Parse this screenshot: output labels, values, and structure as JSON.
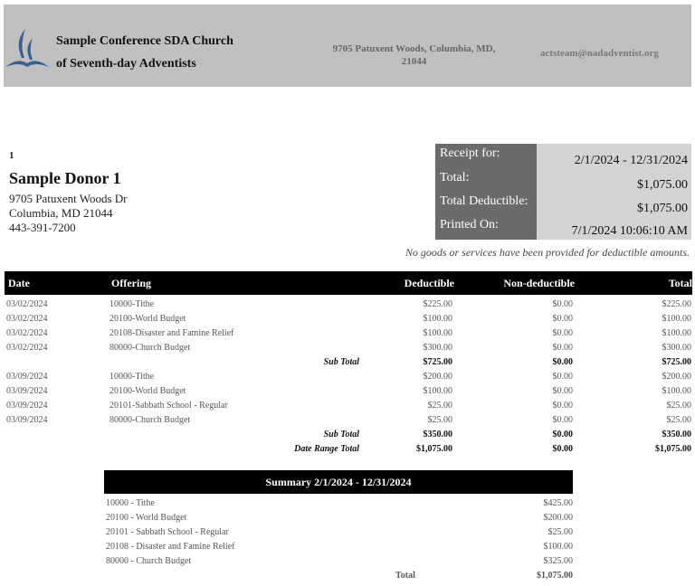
{
  "header": {
    "org_line1": "Sample Conference SDA Church",
    "org_line2": "of Seventh-day Adventists",
    "address": "9705 Patuxent Woods, Columbia, MD, 21044",
    "email": "actsteam@nadadventist.org",
    "logo_color": "#3a5f8f"
  },
  "donor": {
    "number": "1",
    "name": "Sample Donor 1",
    "street": "9705 Patuxent Woods Dr",
    "city": "Columbia, MD 21044",
    "phone": "443-391-7200"
  },
  "receipt": [
    {
      "label": "Receipt for:",
      "value": "2/1/2024 - 12/31/2024"
    },
    {
      "label": "Total:",
      "value": "$1,075.00"
    },
    {
      "label": "Total Deductible:",
      "value": "$1,075.00"
    },
    {
      "label": "Printed On:",
      "value": "7/1/2024  10:06:10 AM"
    }
  ],
  "notice": "No goods or services have been provided for deductible amounts.",
  "table": {
    "headers": [
      "Date",
      "Offering",
      "Deductible",
      "Non-deductible",
      "Total"
    ],
    "rows": [
      {
        "date": "03/02/2024",
        "offering": "10000-Tithe",
        "ded": "$225.00",
        "non": "$0.00",
        "total": "$225.00"
      },
      {
        "date": "03/02/2024",
        "offering": "20100-World Budget",
        "ded": "$100.00",
        "non": "$0.00",
        "total": "$100.00"
      },
      {
        "date": "03/02/2024",
        "offering": "20108-Disaster and Famine Relief",
        "ded": "$100.00",
        "non": "$0.00",
        "total": "$100.00"
      },
      {
        "date": "03/02/2024",
        "offering": "80000-Church Budget",
        "ded": "$300.00",
        "non": "$0.00",
        "total": "$300.00"
      },
      {
        "label": "Sub Total",
        "ded": "$725.00",
        "non": "$0.00",
        "total": "$725.00"
      },
      {
        "date": "03/09/2024",
        "offering": "10000-Tithe",
        "ded": "$200.00",
        "non": "$0.00",
        "total": "$200.00"
      },
      {
        "date": "03/09/2024",
        "offering": "20100-World Budget",
        "ded": "$100.00",
        "non": "$0.00",
        "total": "$100.00"
      },
      {
        "date": "03/09/2024",
        "offering": "20101-Sabbath School - Regular",
        "ded": "$25.00",
        "non": "$0.00",
        "total": "$25.00"
      },
      {
        "date": "03/09/2024",
        "offering": "80000-Church Budget",
        "ded": "$25.00",
        "non": "$0.00",
        "total": "$25.00"
      },
      {
        "label": "Sub Total",
        "ded": "$350.00",
        "non": "$0.00",
        "total": "$350.00"
      },
      {
        "label": "Date Range Total",
        "ded": "$1,075.00",
        "non": "$0.00",
        "total": "$1,075.00"
      }
    ]
  },
  "summary": {
    "title": "Summary 2/1/2024 - 12/31/2024",
    "rows": [
      {
        "fund": "10000 - Tithe",
        "amount": "$425.00"
      },
      {
        "fund": "20100 - World Budget",
        "amount": "$200.00"
      },
      {
        "fund": "20101 - Sabbath School - Regular",
        "amount": "$25.00"
      },
      {
        "fund": "20108 - Disaster and Famine Relief",
        "amount": "$100.00"
      },
      {
        "fund": "80000 - Church Budget",
        "amount": "$325.00"
      }
    ],
    "total_label": "Total",
    "total": "$1,075.00"
  }
}
